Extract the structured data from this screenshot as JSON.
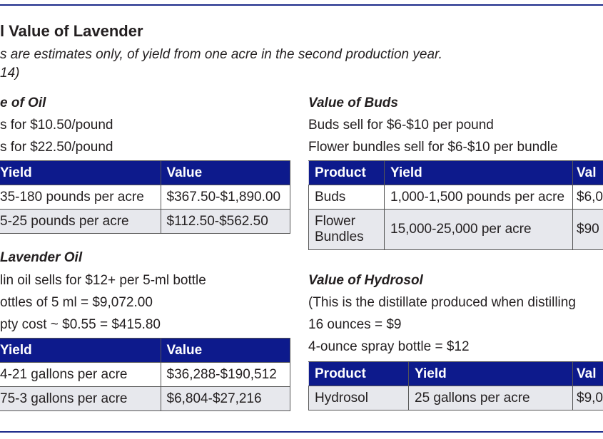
{
  "title": "l Value of Lavender",
  "subtitle_line1": "s are estimates only, of yield from one acre in the second production year.",
  "subtitle_line2": "14)",
  "oil": {
    "heading": "e of Oil",
    "lines": [
      "s for $10.50/pound",
      "s for $22.50/pound"
    ],
    "table": {
      "headers": [
        "Yield",
        "Value"
      ],
      "rows": [
        [
          "35-180 pounds per acre",
          "$367.50-$1,890.00"
        ],
        [
          "5-25 pounds per acre",
          "$112.50-$562.50"
        ]
      ]
    }
  },
  "lavender_oil": {
    "heading": "Lavender Oil",
    "lines": [
      "lin oil sells for $12+ per 5-ml bottle",
      "ottles of 5 ml = $9,072.00",
      "pty cost ~ $0.55 = $415.80"
    ],
    "table": {
      "headers": [
        "Yield",
        "Value"
      ],
      "rows": [
        [
          "4-21 gallons per acre",
          "$36,288-$190,512"
        ],
        [
          "75-3 gallons per acre",
          "$6,804-$27,216"
        ]
      ]
    }
  },
  "buds": {
    "heading": "Value of Buds",
    "lines": [
      "Buds sell for $6-$10 per pound",
      "Flower bundles sell for $6-$10 per bundle"
    ],
    "table": {
      "headers": [
        "Product",
        "Yield",
        "Val"
      ],
      "rows": [
        [
          "Buds",
          "1,000-1,500 pounds per acre",
          "$6,0"
        ],
        [
          "Flower Bundles",
          "15,000-25,000 per acre",
          "$90"
        ]
      ]
    }
  },
  "hydrosol": {
    "heading": "Value of Hydrosol",
    "lines": [
      "(This is the distillate produced when distilling",
      "16 ounces = $9",
      "4-ounce spray bottle = $12"
    ],
    "table": {
      "headers": [
        "Product",
        "Yield",
        "Val"
      ],
      "rows": [
        [
          "Hydrosol",
          "25 gallons per acre",
          "$9,0"
        ]
      ]
    }
  }
}
